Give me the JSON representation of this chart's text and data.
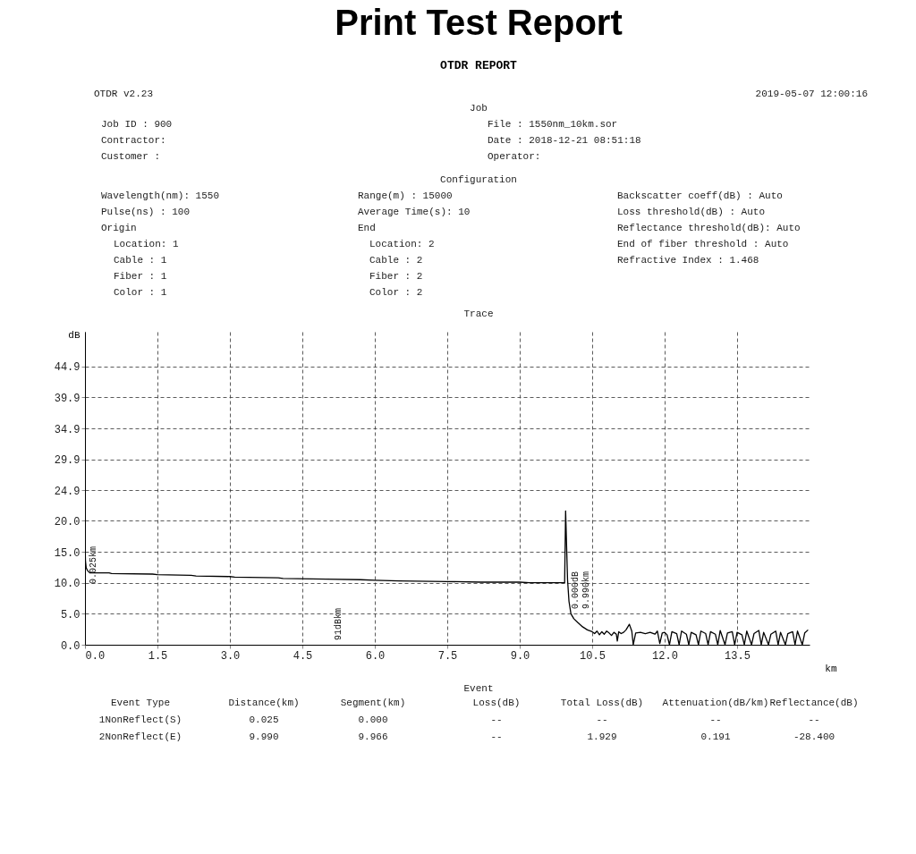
{
  "chart_data": {
    "type": "line",
    "title": "Print Test Report",
    "subtitle": "OTDR REPORT",
    "xlabel": "km",
    "ylabel": "dB",
    "color": "#000000",
    "line_style": "solid",
    "grid": true,
    "xlim": [
      0,
      15
    ],
    "ylim": [
      0,
      50.5
    ],
    "xticks": [
      {
        "value": 0,
        "label": "0.0"
      },
      {
        "value": 1.5,
        "label": "1.5"
      },
      {
        "value": 3,
        "label": "3.0"
      },
      {
        "value": 4.5,
        "label": "4.5"
      },
      {
        "value": 6,
        "label": "6.0"
      },
      {
        "value": 7.5,
        "label": "7.5"
      },
      {
        "value": 9,
        "label": "9.0"
      },
      {
        "value": 10.5,
        "label": "10.5"
      },
      {
        "value": 12,
        "label": "12.0"
      },
      {
        "value": 13.5,
        "label": "13.5"
      }
    ],
    "yticks": [
      {
        "value": 0,
        "label": "0.0"
      },
      {
        "value": 5,
        "label": "5.0"
      },
      {
        "value": 10,
        "label": "10.0"
      },
      {
        "value": 15,
        "label": "15.0"
      },
      {
        "value": 20,
        "label": "20.0"
      },
      24.9,
      29.9,
      34.9,
      39.9,
      44.9
    ],
    "x": [
      0.0,
      0.01,
      0.025,
      0.05,
      0.1,
      0.5,
      0.55,
      1.4,
      1.5,
      2.2,
      2.3,
      3.0,
      3.1,
      4.0,
      4.1,
      5.0,
      5.7,
      6.0,
      6.5,
      7.5,
      8.2,
      9.0,
      9.2,
      9.93,
      9.95,
      9.97,
      9.99,
      10.02,
      10.06,
      10.12,
      10.2,
      10.3,
      10.4,
      10.5,
      10.55,
      10.6,
      10.65,
      10.7,
      10.75,
      10.8,
      10.85,
      10.9,
      10.95,
      11.0,
      11.02,
      11.05,
      11.1,
      11.15,
      11.2,
      11.27,
      11.32,
      11.35,
      11.4,
      11.5,
      11.6,
      11.7,
      11.8,
      11.85,
      11.9,
      11.95,
      12.0,
      12.05,
      12.1,
      12.15,
      12.25,
      12.3,
      12.35,
      12.45,
      12.5,
      12.55,
      12.65,
      12.7,
      12.75,
      12.85,
      12.9,
      12.95,
      13.05,
      13.1,
      13.15,
      13.25,
      13.3,
      13.4,
      13.45,
      13.5,
      13.6,
      13.65,
      13.7,
      13.8,
      13.85,
      13.95,
      14.0,
      14.05,
      14.15,
      14.2,
      14.3,
      14.35,
      14.4,
      14.5,
      14.55,
      14.65,
      14.7,
      14.75,
      14.85,
      14.9,
      14.97
    ],
    "values": [
      17.0,
      13.5,
      12.4,
      12.0,
      11.6,
      11.6,
      11.5,
      11.4,
      11.3,
      11.2,
      11.1,
      11.0,
      10.9,
      10.8,
      10.7,
      10.6,
      10.5,
      10.4,
      10.3,
      10.2,
      10.1,
      10.1,
      10.0,
      10.0,
      21.6,
      16.0,
      10.5,
      7.0,
      5.0,
      4.2,
      3.6,
      2.9,
      2.4,
      2.1,
      1.8,
      2.2,
      1.6,
      2.1,
      1.7,
      2.2,
      1.9,
      1.5,
      2.0,
      1.7,
      0.6,
      2.1,
      1.8,
      2.0,
      2.4,
      3.3,
      2.2,
      0.0,
      1.9,
      2.0,
      1.8,
      2.0,
      1.7,
      2.2,
      0.2,
      1.9,
      2.0,
      1.6,
      0.0,
      2.1,
      1.8,
      0.0,
      2.2,
      1.7,
      0.0,
      2.0,
      1.6,
      0.0,
      2.2,
      1.8,
      0.0,
      2.1,
      1.7,
      0.0,
      2.3,
      0.0,
      1.9,
      2.1,
      0.0,
      2.0,
      1.6,
      0.0,
      2.2,
      0.0,
      1.8,
      2.3,
      0.0,
      2.0,
      0.0,
      1.7,
      2.2,
      0.0,
      2.0,
      0.0,
      1.8,
      2.1,
      0.0,
      2.2,
      0.0,
      1.9,
      2.4
    ],
    "annotations": [
      "OTDR v2.23",
      "2019-05-07 12:00:16",
      "Job",
      "Job ID : 900",
      "Contractor:",
      "Customer :",
      "File : 1550nm_10km.sor",
      "Date : 2018-12-21 08:51:18",
      "Operator:",
      "Configuration",
      "Wavelength(nm): 1550",
      "Pulse(ns) : 100",
      "Origin",
      "Location: 1",
      "Cable : 1",
      "Fiber : 1",
      "Color : 1",
      "Range(m) : 15000",
      "Average Time(s): 10",
      "End",
      "Location: 2",
      "Cable : 2",
      "Fiber : 2",
      "Color : 2",
      "Backscatter coeff(dB) : Auto",
      "Loss threshold(dB) : Auto",
      "Reflectance threshold(dB): Auto",
      "End of fiber threshold : Auto",
      "Refractive Index : 1.468",
      "Trace",
      "0.025km",
      "91dBkm",
      "0.000dB",
      "9.990km",
      "Event",
      "Event Type",
      "Distance(km)",
      "Segment(km)",
      "Loss(dB)",
      "Total Loss(dB)",
      "Attenuation(dB/km)",
      "Reflectance(dB)",
      "1NonReflect(S)",
      "0.025",
      "0.000",
      "--",
      "--",
      "--",
      "--",
      "2NonReflect(E)",
      "9.990",
      "9.966",
      "--",
      "1.929",
      "0.191",
      "-28.400"
    ]
  }
}
